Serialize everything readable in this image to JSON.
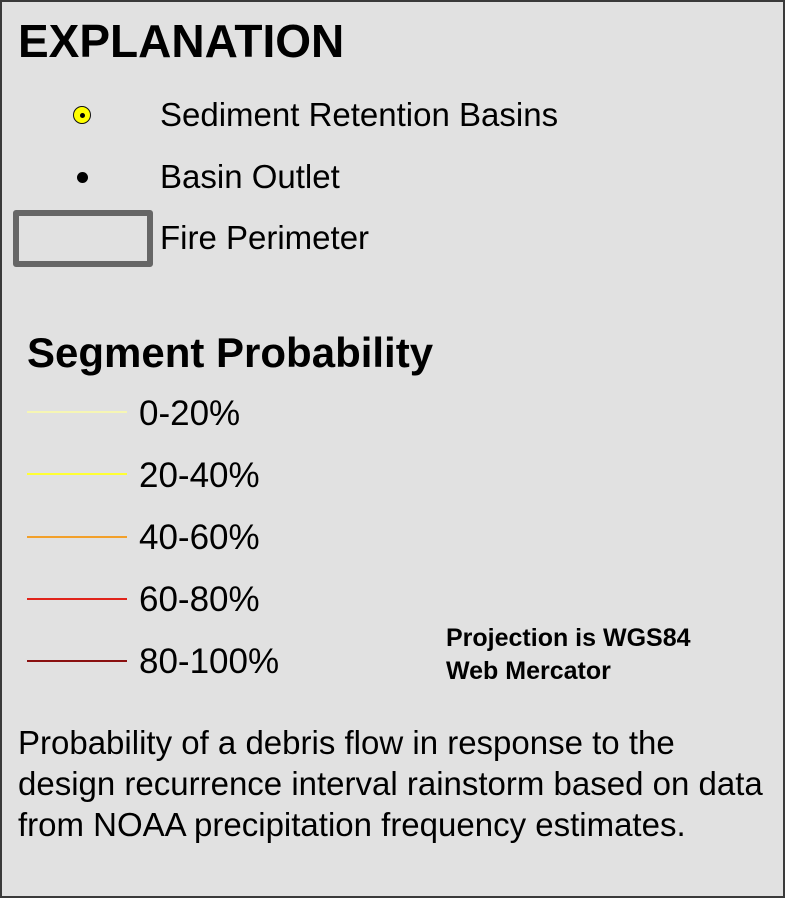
{
  "legend": {
    "title": "EXPLANATION",
    "items": [
      {
        "label": "Sediment Retention Basins",
        "symbol": "yellow-circle-dot-icon",
        "fill": "#ffff00"
      },
      {
        "label": "Basin Outlet",
        "symbol": "black-dot-icon",
        "fill": "#000000"
      },
      {
        "label": "Fire Perimeter",
        "symbol": "gray-rectangle-outline-icon",
        "stroke": "#666666"
      }
    ]
  },
  "segment_probability": {
    "heading": "Segment Probability",
    "classes": [
      {
        "label": "0-20%",
        "color": "#f6f6b4"
      },
      {
        "label": "20-40%",
        "color": "#ffff33"
      },
      {
        "label": "40-60%",
        "color": "#f2a02a"
      },
      {
        "label": "60-80%",
        "color": "#e0241b"
      },
      {
        "label": "80-100%",
        "color": "#8a1010"
      }
    ]
  },
  "projection_note": {
    "line1": "Projection is WGS84",
    "line2": "Web Mercator"
  },
  "description": "Probability of a debris flow in response to the design recurrence interval rainstorm based on data from NOAA precipitation frequency estimates."
}
